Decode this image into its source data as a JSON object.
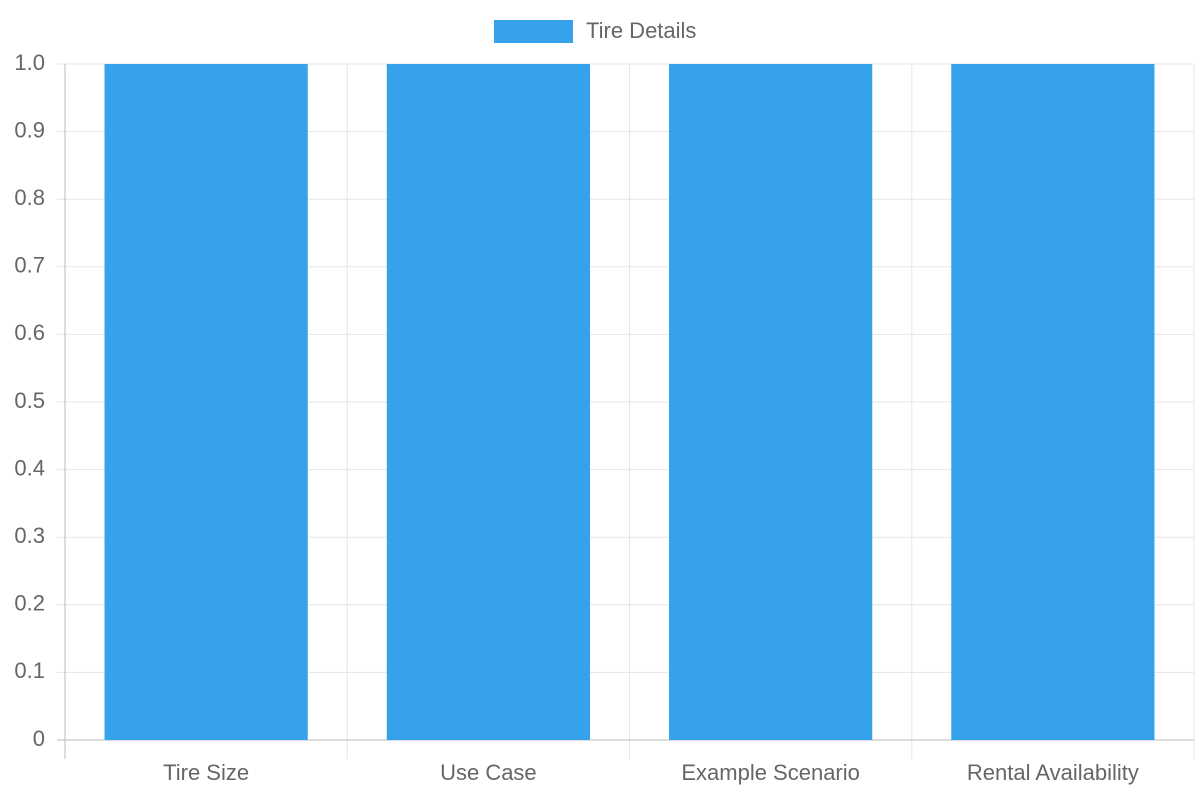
{
  "chart_data": {
    "type": "bar",
    "categories": [
      "Tire Size",
      "Use Case",
      "Example Scenario",
      "Rental Availability"
    ],
    "series": [
      {
        "name": "Tire Details",
        "color": "#36a2eb",
        "values": [
          1,
          1,
          1,
          1
        ]
      }
    ],
    "ylim": [
      0,
      1
    ],
    "yticks": [
      0,
      0.1,
      0.2,
      0.3,
      0.4,
      0.5,
      0.6,
      0.7,
      0.8,
      0.9,
      {
        "value": 1,
        "label": "1.0"
      }
    ],
    "grid": true,
    "legend": "top"
  }
}
